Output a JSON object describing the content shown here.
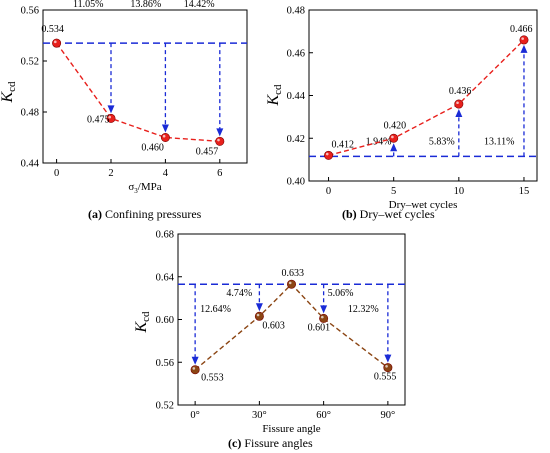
{
  "figure": {
    "caption_a": {
      "label": "(a)",
      "text": " Confining pressures"
    },
    "caption_b": {
      "label": "(b)",
      "text": " Dry–wet cycles"
    },
    "caption_c": {
      "label": "(c)",
      "text": " Fissure angles"
    }
  },
  "chart_data": [
    {
      "type": "line",
      "panel": "a",
      "xlabel": "σ3/MPa",
      "ylabel": "Kcd",
      "xlim": [
        -0.5,
        7
      ],
      "ylim": [
        0.44,
        0.56
      ],
      "xticks": [
        0,
        2,
        4,
        6
      ],
      "xtick_labels": [
        "0",
        "2",
        "4",
        "6"
      ],
      "yticks": [
        0.44,
        0.48,
        0.52,
        0.56
      ],
      "ytick_labels": [
        "0.44",
        "0.48",
        "0.52",
        "0.56"
      ],
      "series": [
        {
          "x": [
            0,
            2,
            4,
            6
          ],
          "values": [
            0.534,
            0.475,
            0.46,
            0.457
          ],
          "point_labels": [
            "0.534",
            "0.475",
            "0.460",
            "0.457"
          ]
        }
      ],
      "reference_line": 0.534,
      "annotations": [
        {
          "x": 2,
          "text": "11.05%"
        },
        {
          "x": 4,
          "text": "13.86%"
        },
        {
          "x": 6,
          "text": "14.42%"
        }
      ],
      "colors": {
        "line": "#e8201c",
        "marker": "#e8201c",
        "reference": "#1a2bd6"
      }
    },
    {
      "type": "line",
      "panel": "b",
      "xlabel": "Dry–wet cycles",
      "ylabel": "Kcd",
      "xlim": [
        -1.5,
        16
      ],
      "ylim": [
        0.4,
        0.48
      ],
      "xticks": [
        0,
        5,
        10,
        15
      ],
      "xtick_labels": [
        "0",
        "5",
        "10",
        "15"
      ],
      "yticks": [
        0.4,
        0.42,
        0.44,
        0.46,
        0.48
      ],
      "ytick_labels": [
        "0.40",
        "0.42",
        "0.44",
        "0.46",
        "0.48"
      ],
      "series": [
        {
          "x": [
            0,
            5,
            10,
            15
          ],
          "values": [
            0.412,
            0.42,
            0.436,
            0.466
          ],
          "point_labels": [
            "0.412",
            "0.420",
            "0.436",
            "0.466"
          ]
        }
      ],
      "reference_line": 0.4115,
      "annotations": [
        {
          "x": 5,
          "text": "1.94%"
        },
        {
          "x": 10,
          "text": "5.83%"
        },
        {
          "x": 15,
          "text": "13.11%"
        }
      ],
      "colors": {
        "line": "#e8201c",
        "marker": "#e8201c",
        "reference": "#1a2bd6"
      }
    },
    {
      "type": "line",
      "panel": "c",
      "xlabel": "Fissure angle",
      "ylabel": "Kcd",
      "xlim": [
        -8,
        98
      ],
      "ylim": [
        0.52,
        0.68
      ],
      "xticks": [
        0,
        30,
        60,
        90
      ],
      "xtick_labels": [
        "0°",
        "30°",
        "60°",
        "90°"
      ],
      "yticks": [
        0.52,
        0.56,
        0.6,
        0.64,
        0.68
      ],
      "ytick_labels": [
        "0.52",
        "0.56",
        "0.60",
        "0.64",
        "0.68"
      ],
      "series": [
        {
          "x": [
            0,
            30,
            45,
            60,
            90
          ],
          "values": [
            0.553,
            0.603,
            0.633,
            0.601,
            0.555
          ],
          "point_labels": [
            "0.553",
            "0.603",
            "0.633",
            "0.601",
            "0.555"
          ]
        }
      ],
      "reference_line": 0.633,
      "annotations": [
        {
          "x": 0,
          "text": "12.64%"
        },
        {
          "x": 30,
          "text": "4.74%"
        },
        {
          "x": 60,
          "text": "5.06%"
        },
        {
          "x": 90,
          "text": "12.32%"
        }
      ],
      "colors": {
        "line": "#8b4513",
        "marker": "#8b4513",
        "reference": "#1a2bd6"
      }
    }
  ]
}
